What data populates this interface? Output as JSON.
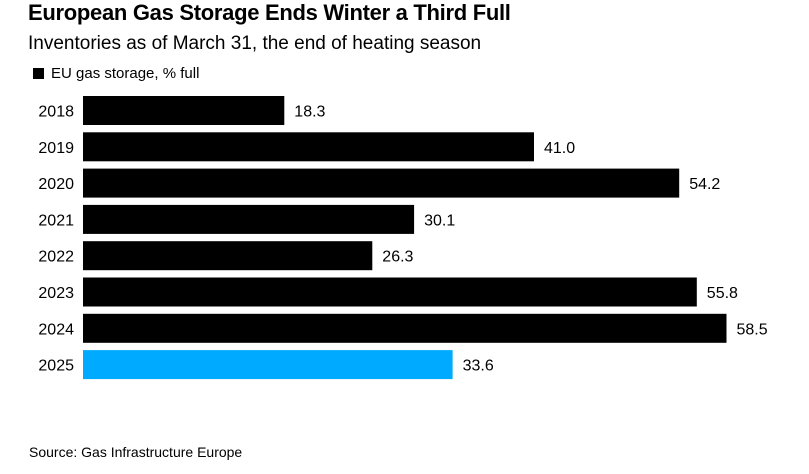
{
  "title": "European Gas Storage Ends Winter a Third Full",
  "subtitle": "Inventories as of March 31, the end of heating season",
  "legend": {
    "label": "EU gas storage, % full",
    "color": "#000000"
  },
  "source": "Source: Gas Infrastructure Europe",
  "colors": {
    "default_bar": "#000000",
    "highlight_bar": "#00aaff"
  },
  "chart_data": {
    "type": "bar",
    "orientation": "horizontal",
    "title": "European Gas Storage Ends Winter a Third Full",
    "subtitle": "Inventories as of March 31, the end of heating season",
    "xlabel": "",
    "ylabel": "",
    "xlim": [
      0,
      62
    ],
    "grid": false,
    "legend_position": "top-left",
    "categories": [
      "2018",
      "2019",
      "2020",
      "2021",
      "2022",
      "2023",
      "2024",
      "2025"
    ],
    "series": [
      {
        "name": "EU gas storage, % full",
        "values": [
          18.3,
          41.0,
          54.2,
          30.1,
          26.3,
          55.8,
          58.5,
          33.6
        ],
        "labels": [
          "18.3",
          "41.0",
          "54.2",
          "30.1",
          "26.3",
          "55.8",
          "58.5",
          "33.6"
        ]
      }
    ],
    "highlight_category": "2025"
  }
}
